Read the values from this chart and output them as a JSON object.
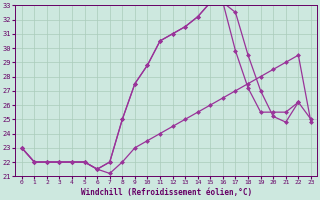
{
  "xlabel": "Windchill (Refroidissement éolien,°C)",
  "xlim": [
    -0.5,
    23.5
  ],
  "ylim": [
    21,
    33
  ],
  "yticks": [
    21,
    22,
    23,
    24,
    25,
    26,
    27,
    28,
    29,
    30,
    31,
    32,
    33
  ],
  "xticks": [
    0,
    1,
    2,
    3,
    4,
    5,
    6,
    7,
    8,
    9,
    10,
    11,
    12,
    13,
    14,
    15,
    16,
    17,
    18,
    19,
    20,
    21,
    22,
    23
  ],
  "bg_color": "#cde8df",
  "grid_color": "#aaccbb",
  "line_color": "#993399",
  "line1_x": [
    0,
    1,
    2,
    3,
    4,
    5,
    6,
    7,
    8,
    9,
    10,
    11,
    12,
    13,
    14,
    15,
    16,
    17,
    18,
    19,
    20,
    21,
    22,
    23
  ],
  "line1_y": [
    23.0,
    22.0,
    22.0,
    22.0,
    22.0,
    22.0,
    21.5,
    21.2,
    22.0,
    23.0,
    23.5,
    24.0,
    24.5,
    25.0,
    25.5,
    26.0,
    26.5,
    27.0,
    27.5,
    28.0,
    28.5,
    29.0,
    29.5,
    24.8
  ],
  "line2_x": [
    0,
    1,
    2,
    3,
    4,
    5,
    6,
    7,
    8,
    9,
    10,
    11,
    12,
    13,
    14,
    15,
    16,
    17,
    18,
    19,
    20,
    21,
    22
  ],
  "line2_y": [
    23.0,
    22.0,
    22.0,
    22.0,
    22.0,
    22.0,
    21.5,
    22.0,
    25.0,
    27.5,
    28.8,
    30.5,
    31.0,
    31.5,
    32.2,
    33.2,
    33.2,
    32.5,
    29.5,
    27.0,
    25.2,
    24.8,
    26.2
  ],
  "line3_x": [
    0,
    1,
    2,
    3,
    4,
    5,
    6,
    7,
    8,
    9,
    10,
    11,
    12,
    13,
    14,
    15,
    16,
    17,
    18,
    19,
    20,
    21,
    22,
    23
  ],
  "line3_y": [
    23.0,
    22.0,
    22.0,
    22.0,
    22.0,
    22.0,
    21.5,
    22.0,
    25.0,
    27.5,
    28.8,
    30.5,
    31.0,
    31.5,
    32.2,
    33.2,
    33.2,
    29.8,
    27.2,
    25.5,
    25.5,
    25.5,
    26.2,
    25.0
  ]
}
